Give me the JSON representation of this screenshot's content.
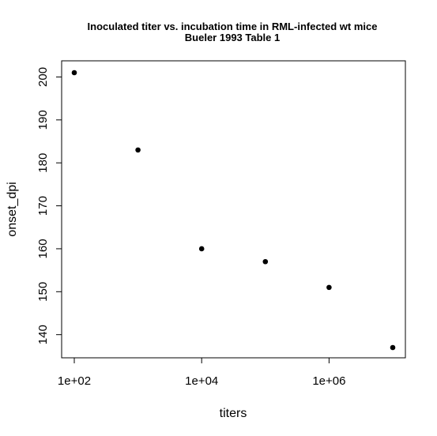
{
  "chart_data": {
    "type": "scatter",
    "title": "Inoculated titer vs. incubation time in RML-infected wt mice",
    "subtitle": "Bueler 1993 Table 1",
    "xlabel": "titers",
    "ylabel": "onset_dpi",
    "x_scale": "log10",
    "xlim": [
      100,
      10000000
    ],
    "ylim": [
      137,
      201
    ],
    "x_ticks": [
      100,
      10000,
      1000000
    ],
    "x_tick_labels": [
      "1e+02",
      "1e+04",
      "1e+06"
    ],
    "y_ticks": [
      140,
      150,
      160,
      170,
      180,
      190,
      200
    ],
    "y_tick_labels": [
      "140",
      "150",
      "160",
      "170",
      "180",
      "190",
      "200"
    ],
    "points": [
      {
        "x": 100,
        "y": 201
      },
      {
        "x": 1000,
        "y": 183
      },
      {
        "x": 10000,
        "y": 160
      },
      {
        "x": 100000,
        "y": 157
      },
      {
        "x": 1000000,
        "y": 151
      },
      {
        "x": 10000000,
        "y": 137
      }
    ],
    "marker_color": "#000000",
    "grid": false,
    "legend": "none"
  }
}
